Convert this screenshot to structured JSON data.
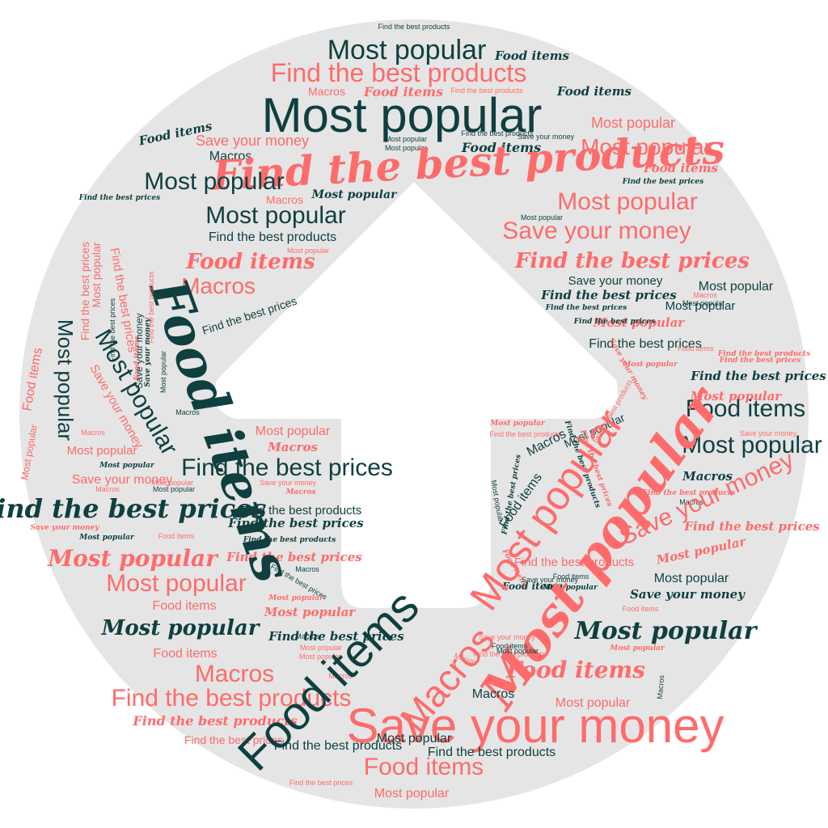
{
  "colors": {
    "background": "#ffffff",
    "disc": "#e5e5e5",
    "arrow": "#ffffff",
    "dark": "#0f3f3f",
    "coral": "#ff6b6b"
  },
  "icon": "upload-arrow-icon",
  "words": [
    {
      "id": "w001",
      "text": "Find the best products"
    },
    {
      "id": "w002",
      "text": "Most popular"
    },
    {
      "id": "w003",
      "text": "Food items"
    },
    {
      "id": "w004",
      "text": "Find the best products"
    },
    {
      "id": "w005",
      "text": "Macros"
    },
    {
      "id": "w006",
      "text": "Food items"
    },
    {
      "id": "w007",
      "text": "Find the best products"
    },
    {
      "id": "w008",
      "text": "Food items"
    },
    {
      "id": "w009",
      "text": "Most popular"
    },
    {
      "id": "w010",
      "text": "Most popular"
    },
    {
      "id": "w011",
      "text": "Food items"
    },
    {
      "id": "w012",
      "text": "Save your money"
    },
    {
      "id": "w013",
      "text": "Most popular"
    },
    {
      "id": "w014",
      "text": "Most popular"
    },
    {
      "id": "w015",
      "text": "Save your money"
    },
    {
      "id": "w016",
      "text": "Most popular"
    },
    {
      "id": "w017",
      "text": "Food items"
    },
    {
      "id": "w018",
      "text": "Macros"
    },
    {
      "id": "w019",
      "text": "Find the best products"
    },
    {
      "id": "w020",
      "text": "Food items"
    },
    {
      "id": "w021",
      "text": "Most popular"
    },
    {
      "id": "w022",
      "text": "Find the best prices"
    },
    {
      "id": "w023",
      "text": "Macros"
    },
    {
      "id": "w024",
      "text": "Most popular"
    },
    {
      "id": "w025",
      "text": "Find the best prices"
    },
    {
      "id": "w026",
      "text": "Most popular"
    },
    {
      "id": "w027",
      "text": "Most popular"
    },
    {
      "id": "w028",
      "text": "Most popular"
    },
    {
      "id": "w029",
      "text": "Save your money"
    },
    {
      "id": "w030",
      "text": "Find the best products"
    },
    {
      "id": "w031",
      "text": "Most popular"
    },
    {
      "id": "w032",
      "text": "Food items"
    },
    {
      "id": "w033",
      "text": "Find the best prices"
    },
    {
      "id": "w034",
      "text": "Macros"
    },
    {
      "id": "w035",
      "text": "Save your money"
    },
    {
      "id": "w036",
      "text": "Most popular"
    },
    {
      "id": "w037",
      "text": "Find the best prices"
    },
    {
      "id": "w038",
      "text": "Macros"
    },
    {
      "id": "w039",
      "text": "Most popular"
    },
    {
      "id": "w040",
      "text": "Find the best prices"
    },
    {
      "id": "w041",
      "text": "Find the best prices"
    },
    {
      "id": "w042",
      "text": "Most popular"
    },
    {
      "id": "w043",
      "text": "Find the best prices"
    },
    {
      "id": "w044",
      "text": "Find the best products"
    },
    {
      "id": "w045",
      "text": "Save your money"
    },
    {
      "id": "w046",
      "text": "Most popular"
    },
    {
      "id": "w047",
      "text": "Find the best prices"
    },
    {
      "id": "w048",
      "text": "Most popular"
    },
    {
      "id": "w049",
      "text": "Most popular"
    },
    {
      "id": "w050",
      "text": "Find the best prices"
    },
    {
      "id": "w051",
      "text": "Food items"
    },
    {
      "id": "w052",
      "text": "Save your money"
    },
    {
      "id": "w053",
      "text": "Food items"
    },
    {
      "id": "w054",
      "text": "Most popular"
    },
    {
      "id": "w055",
      "text": "Most popular"
    },
    {
      "id": "w056",
      "text": "Save your money"
    },
    {
      "id": "w057",
      "text": "Macros"
    },
    {
      "id": "w058",
      "text": "Most popular"
    },
    {
      "id": "w059",
      "text": "Macros"
    },
    {
      "id": "w060",
      "text": "Find the best prices"
    },
    {
      "id": "w061",
      "text": "Most popular"
    },
    {
      "id": "w062",
      "text": "Most popular"
    },
    {
      "id": "w063",
      "text": "Macros"
    },
    {
      "id": "w064",
      "text": "Most popular"
    },
    {
      "id": "w065",
      "text": "Save your money"
    },
    {
      "id": "w066",
      "text": "Save your money"
    },
    {
      "id": "w067",
      "text": "Macros"
    },
    {
      "id": "w068",
      "text": "Most popular"
    },
    {
      "id": "w069",
      "text": "Macros"
    },
    {
      "id": "w070",
      "text": "Find the best products"
    },
    {
      "id": "w071",
      "text": "Find the best prices"
    },
    {
      "id": "w072",
      "text": "Find the best prices"
    },
    {
      "id": "w073",
      "text": "Save your money"
    },
    {
      "id": "w074",
      "text": "Most popular"
    },
    {
      "id": "w075",
      "text": "Food items"
    },
    {
      "id": "w076",
      "text": "Find the best products"
    },
    {
      "id": "w077",
      "text": "Most popular"
    },
    {
      "id": "w078",
      "text": "Find the best prices"
    },
    {
      "id": "w079",
      "text": "Macros"
    },
    {
      "id": "w080",
      "text": "Find the best prices"
    },
    {
      "id": "w081",
      "text": "Most popular"
    },
    {
      "id": "w082",
      "text": "Most popular"
    },
    {
      "id": "w083",
      "text": "Food items"
    },
    {
      "id": "w084",
      "text": "Most popular"
    },
    {
      "id": "w085",
      "text": "Most popular"
    },
    {
      "id": "w086",
      "text": "Food items"
    },
    {
      "id": "w087",
      "text": "Most popular"
    },
    {
      "id": "w088",
      "text": "Food items"
    },
    {
      "id": "w089",
      "text": "Most popular"
    },
    {
      "id": "w090",
      "text": "Save your money"
    },
    {
      "id": "w091",
      "text": "Find the best products"
    },
    {
      "id": "w092",
      "text": "Most popular"
    },
    {
      "id": "w093",
      "text": "Find the best products"
    },
    {
      "id": "w094",
      "text": "Macros"
    },
    {
      "id": "w095",
      "text": "Find the best products"
    },
    {
      "id": "w096",
      "text": "Find the best prices"
    },
    {
      "id": "w097",
      "text": "Find the best prices"
    },
    {
      "id": "w098",
      "text": "Most popular"
    },
    {
      "id": "w099",
      "text": "Macros"
    },
    {
      "id": "w100",
      "text": "Find the best products"
    },
    {
      "id": "w101",
      "text": "Macros"
    },
    {
      "id": "w102",
      "text": "Food items"
    },
    {
      "id": "w103",
      "text": "Food items"
    },
    {
      "id": "w104",
      "text": "Save your money"
    },
    {
      "id": "w105",
      "text": "Find the best prices"
    },
    {
      "id": "w106",
      "text": "Most popular"
    },
    {
      "id": "w107",
      "text": "Find the best products"
    },
    {
      "id": "w108",
      "text": "Food items"
    },
    {
      "id": "w109",
      "text": "Most popular"
    },
    {
      "id": "w110",
      "text": "Food items"
    },
    {
      "id": "w111",
      "text": "Most popular"
    },
    {
      "id": "w112",
      "text": "Save your money"
    },
    {
      "id": "w113",
      "text": "Food items"
    },
    {
      "id": "w114",
      "text": "Most popular"
    },
    {
      "id": "w115",
      "text": "Most popular"
    },
    {
      "id": "w116",
      "text": "Most popular"
    },
    {
      "id": "w117",
      "text": "Save your money"
    },
    {
      "id": "w118",
      "text": "Food items"
    },
    {
      "id": "w119",
      "text": "Find the best products"
    },
    {
      "id": "w120",
      "text": "Most popular"
    },
    {
      "id": "w121",
      "text": "Macros"
    },
    {
      "id": "w122",
      "text": "Macros"
    },
    {
      "id": "w123",
      "text": "Food items"
    },
    {
      "id": "w124",
      "text": "Macros"
    },
    {
      "id": "w125",
      "text": "Most popular"
    },
    {
      "id": "w126",
      "text": "Most popular"
    },
    {
      "id": "w127",
      "text": "Find the best prices"
    },
    {
      "id": "w128",
      "text": "Food items"
    },
    {
      "id": "w129",
      "text": "Macros"
    },
    {
      "id": "w130",
      "text": "Find the best products"
    },
    {
      "id": "w131",
      "text": "Macros"
    },
    {
      "id": "w132",
      "text": "Most popular"
    },
    {
      "id": "w133",
      "text": "Find the best products"
    },
    {
      "id": "w134",
      "text": "Save your money"
    },
    {
      "id": "w135",
      "text": "Find the best prices"
    },
    {
      "id": "w136",
      "text": "Find the best products"
    },
    {
      "id": "w137",
      "text": "Most popular"
    },
    {
      "id": "w138",
      "text": "Find the best products"
    },
    {
      "id": "w139",
      "text": "Food items"
    },
    {
      "id": "w140",
      "text": "Find the best prices"
    },
    {
      "id": "w141",
      "text": "Most popular"
    },
    {
      "id": "w142",
      "text": "Food items"
    },
    {
      "id": "w143",
      "text": "Macros"
    },
    {
      "id": "w144",
      "text": "Save your money"
    },
    {
      "id": "w145",
      "text": "Find the best prices"
    },
    {
      "id": "w146",
      "text": "Find the best prices"
    },
    {
      "id": "w147",
      "text": "Most popular"
    },
    {
      "id": "w148",
      "text": "Find the best products"
    },
    {
      "id": "w149",
      "text": "Most popular"
    },
    {
      "id": "w150",
      "text": "Macros"
    },
    {
      "id": "w151",
      "text": "Most popular"
    },
    {
      "id": "w152",
      "text": "Food items"
    },
    {
      "id": "w153",
      "text": "Find the best products"
    },
    {
      "id": "w154",
      "text": "Most popular"
    },
    {
      "id": "w155",
      "text": "Find the best prices"
    },
    {
      "id": "w156",
      "text": "Save your money"
    },
    {
      "id": "w157",
      "text": "Find the best prices"
    }
  ]
}
